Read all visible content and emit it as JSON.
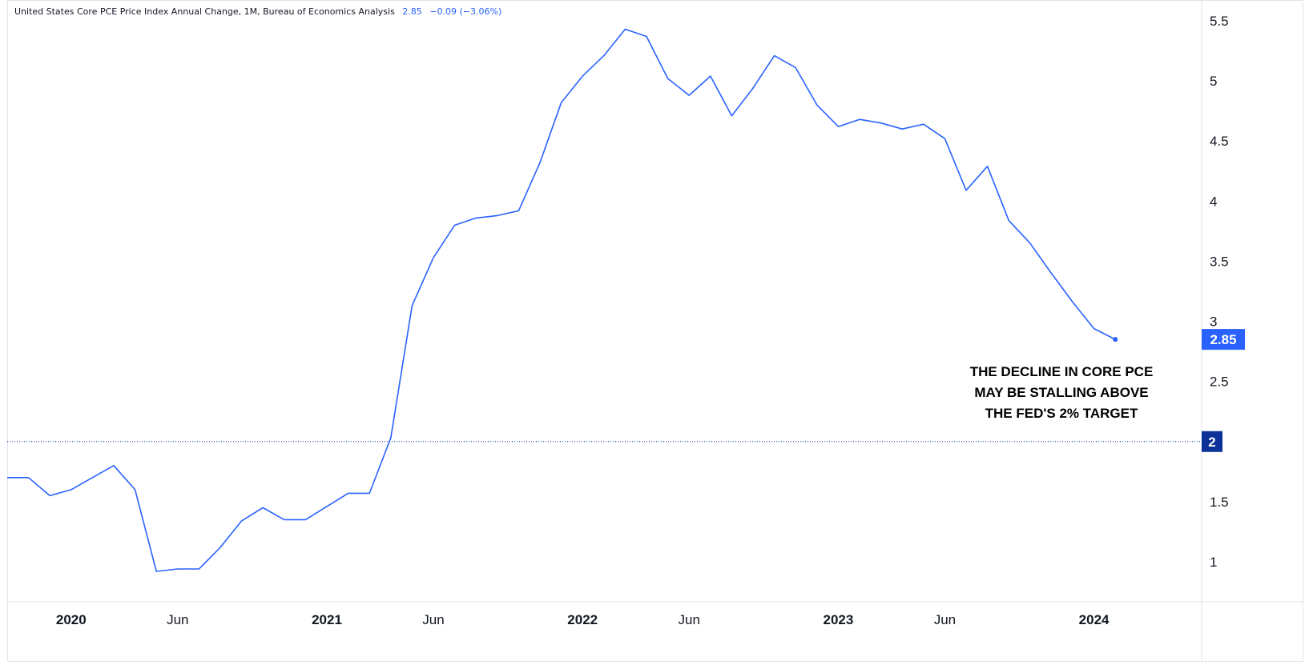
{
  "header": {
    "title": "United States Core PCE Price Index Annual Change, 1M, Bureau of Economics Analysis",
    "last_value": "2.85",
    "change": "−0.09 (−3.06%)"
  },
  "annotation": {
    "lines": [
      "THE DECLINE IN CORE PCE",
      "MAY BE STALLING ABOVE",
      "THE FED'S 2% TARGET"
    ]
  },
  "colors": {
    "line": "#2962ff",
    "last_value_badge": "#2962ff",
    "target_badge": "#0c3299",
    "axis_text": "#131722",
    "border": "#e0e3eb"
  },
  "chart_data": {
    "type": "line",
    "title": "United States Core PCE Price Index Annual Change",
    "x_tick_labels": [
      {
        "label": "2020",
        "date": "2020-01",
        "bold": true
      },
      {
        "label": "Jun",
        "date": "2020-06",
        "bold": false
      },
      {
        "label": "2021",
        "date": "2021-01",
        "bold": true
      },
      {
        "label": "Jun",
        "date": "2021-06",
        "bold": false
      },
      {
        "label": "2022",
        "date": "2022-01",
        "bold": true
      },
      {
        "label": "Jun",
        "date": "2022-06",
        "bold": false
      },
      {
        "label": "2023",
        "date": "2023-01",
        "bold": true
      },
      {
        "label": "Jun",
        "date": "2023-06",
        "bold": false
      },
      {
        "label": "2024",
        "date": "2024-01",
        "bold": true
      }
    ],
    "y_ticks": [
      "1",
      "1.5",
      "2",
      "2.5",
      "3",
      "3.5",
      "4",
      "4.5",
      "5",
      "5.5"
    ],
    "y_tick_values": [
      1,
      1.5,
      2,
      2.5,
      3,
      3.5,
      4,
      4.5,
      5,
      5.5
    ],
    "ylim": [
      0.83,
      5.75
    ],
    "xlim": [
      "2019-10",
      "2024-06"
    ],
    "reference_line": {
      "value": 2,
      "label": "2",
      "style": "dotted"
    },
    "last_value_label": "2.85",
    "series": [
      {
        "points": [
          [
            "2019-10",
            1.7
          ],
          [
            "2019-11",
            1.7
          ],
          [
            "2019-12",
            1.55
          ],
          [
            "2020-01",
            1.6
          ],
          [
            "2020-02",
            1.7
          ],
          [
            "2020-03",
            1.8
          ],
          [
            "2020-04",
            1.6
          ],
          [
            "2020-05",
            0.92
          ],
          [
            "2020-06",
            0.94
          ],
          [
            "2020-07",
            0.94
          ],
          [
            "2020-08",
            1.12
          ],
          [
            "2020-09",
            1.34
          ],
          [
            "2020-10",
            1.45
          ],
          [
            "2020-11",
            1.35
          ],
          [
            "2020-12",
            1.35
          ],
          [
            "2021-01",
            1.46
          ],
          [
            "2021-02",
            1.57
          ],
          [
            "2021-03",
            1.57
          ],
          [
            "2021-04",
            2.03
          ],
          [
            "2021-05",
            3.13
          ],
          [
            "2021-06",
            3.53
          ],
          [
            "2021-07",
            3.8
          ],
          [
            "2021-08",
            3.86
          ],
          [
            "2021-09",
            3.88
          ],
          [
            "2021-10",
            3.92
          ],
          [
            "2021-11",
            4.32
          ],
          [
            "2021-12",
            4.82
          ],
          [
            "2022-01",
            5.04
          ],
          [
            "2022-02",
            5.21
          ],
          [
            "2022-03",
            5.43
          ],
          [
            "2022-04",
            5.37
          ],
          [
            "2022-05",
            5.02
          ],
          [
            "2022-06",
            4.88
          ],
          [
            "2022-07",
            5.04
          ],
          [
            "2022-08",
            4.71
          ],
          [
            "2022-09",
            4.94
          ],
          [
            "2022-10",
            5.21
          ],
          [
            "2022-11",
            5.11
          ],
          [
            "2022-12",
            4.8
          ],
          [
            "2023-01",
            4.62
          ],
          [
            "2023-02",
            4.68
          ],
          [
            "2023-03",
            4.65
          ],
          [
            "2023-04",
            4.6
          ],
          [
            "2023-05",
            4.64
          ],
          [
            "2023-06",
            4.52
          ],
          [
            "2023-07",
            4.09
          ],
          [
            "2023-08",
            4.29
          ],
          [
            "2023-09",
            3.84
          ],
          [
            "2023-10",
            3.65
          ],
          [
            "2023-11",
            3.4
          ],
          [
            "2023-12",
            3.16
          ],
          [
            "2024-01",
            2.94
          ],
          [
            "2024-02",
            2.85
          ]
        ]
      }
    ]
  }
}
